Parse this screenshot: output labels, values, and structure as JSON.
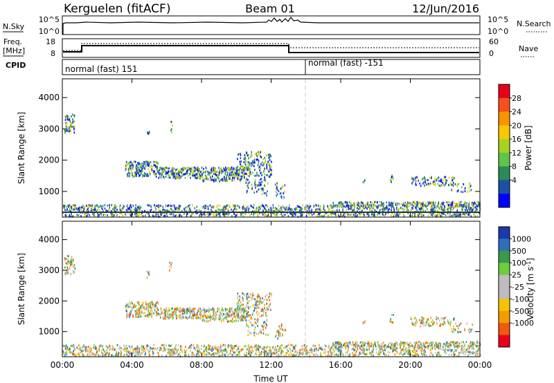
{
  "header": {
    "station": "Kerguelen (fitACF)",
    "beam": "Beam 01",
    "date": "12/Jun/2016"
  },
  "panels": {
    "nsky_label": "N.Sky",
    "nsky_ticks": [
      "10^5",
      "10^0"
    ],
    "nsearch_label": "N.Search",
    "nsearch_ticks": [
      "10^5",
      "10^0"
    ],
    "freq_label": "Freq.",
    "freq_unit": "[MHz]",
    "freq_ticks": [
      "18",
      "8"
    ],
    "nave_label": "Nave",
    "nave_ticks": [
      "60",
      "0"
    ],
    "cpid_label": "CPID",
    "cpid_segments": [
      "normal (fast) 151",
      "normal (fast) -151"
    ]
  },
  "chart_data": [
    {
      "type": "heatmap",
      "name": "power",
      "ylabel": "Slant Range [km]",
      "ylim": [
        180,
        4600
      ],
      "yticks": [
        "4000",
        "3000",
        "2000",
        "1000"
      ],
      "colorbar_label": "Power [dB]",
      "colorbar_ticks": [
        "28",
        "24",
        "20",
        "16",
        "12",
        "8",
        "4"
      ],
      "colorbar_colors": [
        "#e6001a",
        "#f4511e",
        "#f79400",
        "#f7c700",
        "#a8d21f",
        "#62c24a",
        "#2a8a5a",
        "#1f4fa0",
        "#0000ff"
      ]
    },
    {
      "type": "heatmap",
      "name": "velocity",
      "ylabel": "Slant Range [km]",
      "ylim": [
        180,
        4600
      ],
      "yticks": [
        "4000",
        "3000",
        "2000",
        "1000"
      ],
      "colorbar_label": "Velocity [m s",
      "colorbar_label_sup": "-1",
      "colorbar_label_end": "]",
      "colorbar_ticks": [
        "1000",
        "500",
        "100",
        "25",
        "-25",
        "-100",
        "-500",
        "-1000"
      ],
      "colorbar_colors": [
        "#1a3aa8",
        "#2f6fb8",
        "#3a9a4a",
        "#6fcc3a",
        "#bdbdbd",
        "#bdbdbd",
        "#f4c400",
        "#f59a00",
        "#ee5a10",
        "#e8001a"
      ]
    }
  ],
  "xaxis": {
    "label": "Time UT",
    "ticks": [
      "00:00",
      "04:00",
      "08:00",
      "12:00",
      "16:00",
      "20:00",
      "00:00"
    ]
  }
}
